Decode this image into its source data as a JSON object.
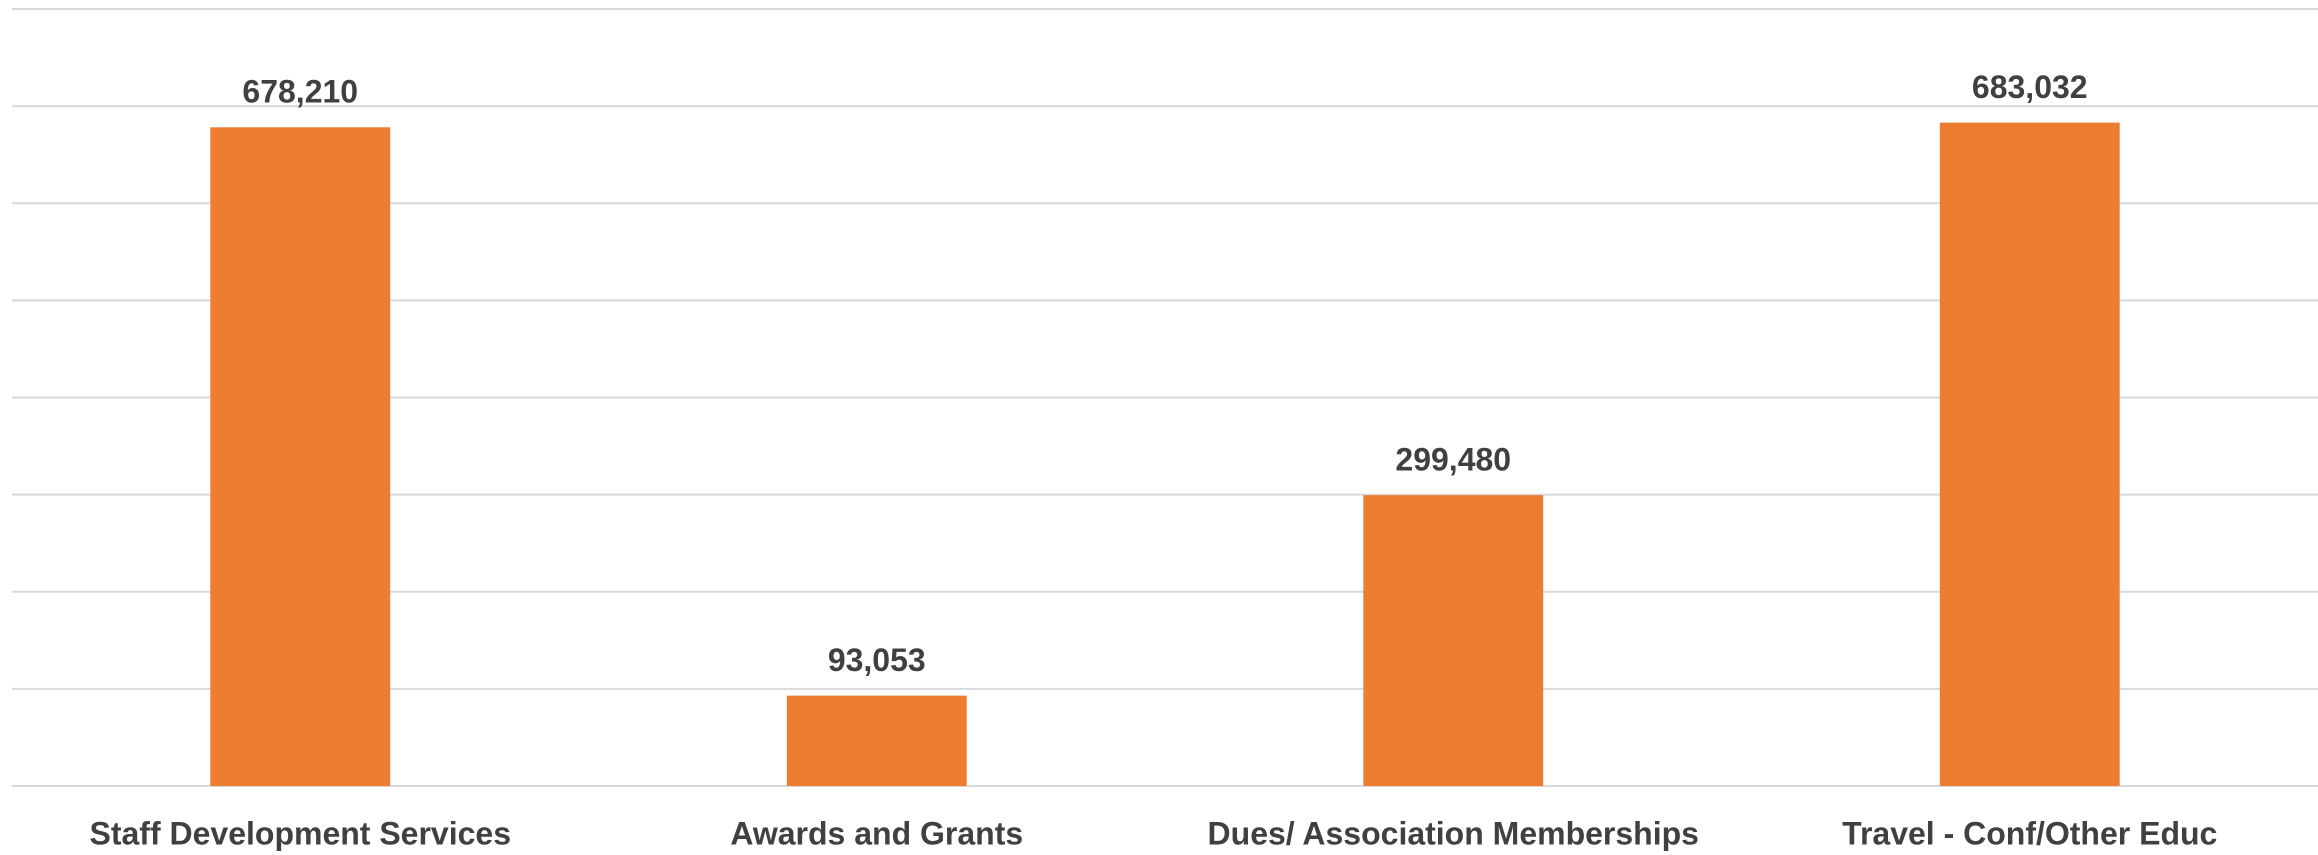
{
  "chart_data": {
    "type": "bar",
    "categories": [
      "Staff Development Services",
      "Awards and Grants",
      "Dues/ Association Memberships",
      "Travel - Conf/Other Educ"
    ],
    "values": [
      678210,
      93053,
      299480,
      683032
    ],
    "value_labels": [
      "678,210",
      "93,053",
      "299,480",
      "683,032"
    ],
    "color": "#ed7d31",
    "ylim": [
      0,
      800000
    ],
    "yticks": [
      0,
      100000,
      200000,
      300000,
      400000,
      500000,
      600000,
      700000,
      800000
    ],
    "grid": true
  }
}
